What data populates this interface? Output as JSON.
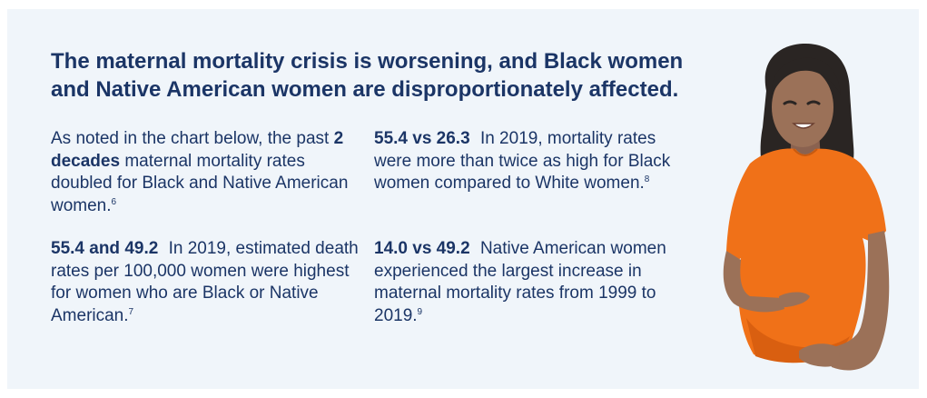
{
  "headline": {
    "line1": "The maternal mortality crisis is worsening, and Black women",
    "line2": "and Native American women are disproportionately affected."
  },
  "blocks": [
    {
      "text_before": "As noted in the chart below, the past ",
      "strong": "2 decades",
      "text_after": " maternal mortality rates doubled for Black and Native American women.",
      "ref": "6"
    },
    {
      "stat": "55.4 and 49.2",
      "text": "In 2019, estimated death rates per 100,000 women were highest for women who are Black or Native American.",
      "ref": "7"
    },
    {
      "stat": "55.4 vs 26.3",
      "text": "In 2019, mortality rates were more than twice as high for Black women compared to White women.",
      "ref": "8"
    },
    {
      "stat": "14.0 vs 49.2",
      "text": "Native American women experienced the largest increase in maternal mortality rates from 1999 to 2019.",
      "ref": "9"
    }
  ],
  "colors": {
    "background": "#f0f5fa",
    "text": "#1b3566",
    "shirt": "#f07118",
    "skin": "#9b7158",
    "hair": "#2a2523"
  },
  "illustration": {
    "icon": "pregnant-woman-illustration"
  }
}
